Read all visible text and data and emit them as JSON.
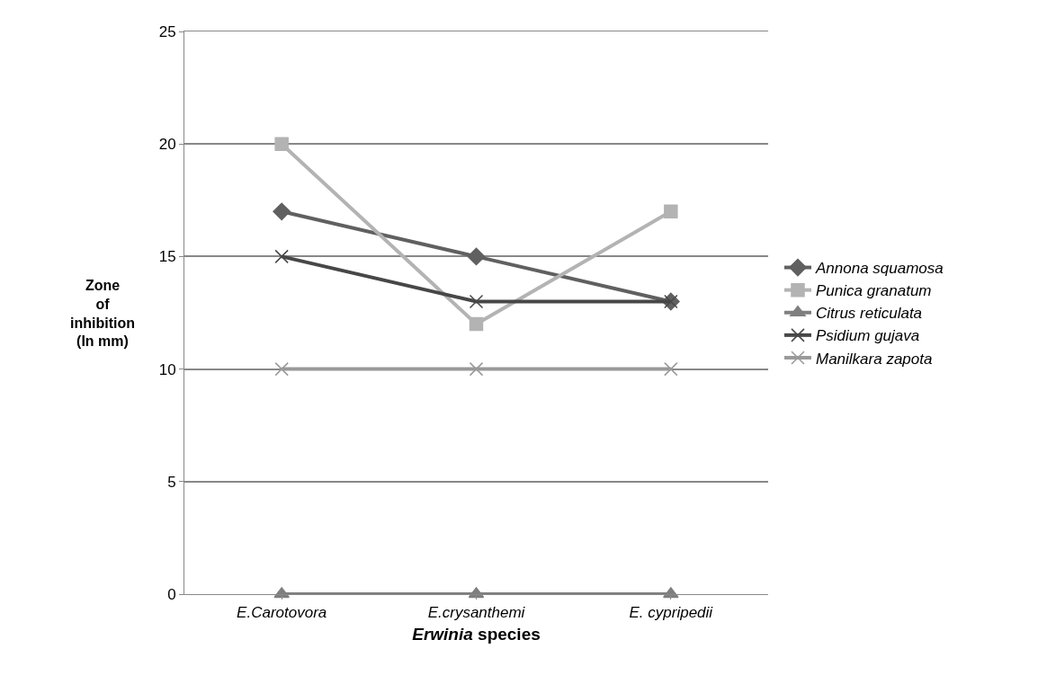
{
  "chart_data": {
    "type": "line",
    "xlabel": "Erwinia species",
    "ylabel": "Zone\nof\ninhibition\n(In mm)",
    "categories": [
      "E.Carotovora",
      "E.crysanthemi",
      "E. cypripedii"
    ],
    "series": [
      {
        "name": "Annona squamosa",
        "color": "#606060",
        "marker": "diamond",
        "values": [
          17,
          15,
          13
        ]
      },
      {
        "name": "Punica granatum",
        "color": "#b3b3b3",
        "marker": "square",
        "values": [
          20,
          12,
          17
        ]
      },
      {
        "name": "Citrus reticulata",
        "color": "#7f7f7f",
        "marker": "triangle",
        "values": [
          0,
          0,
          0
        ]
      },
      {
        "name": "Psidium gujava",
        "color": "#474747",
        "marker": "cross",
        "values": [
          15,
          13,
          13
        ]
      },
      {
        "name": "Manilkara zapota",
        "color": "#999999",
        "marker": "cross",
        "values": [
          10,
          10,
          10
        ]
      }
    ],
    "ylim": [
      0,
      25
    ],
    "yticks": [
      0,
      5,
      10,
      15,
      20,
      25
    ],
    "grid": "y",
    "legend": "right",
    "line_style": "solid"
  }
}
